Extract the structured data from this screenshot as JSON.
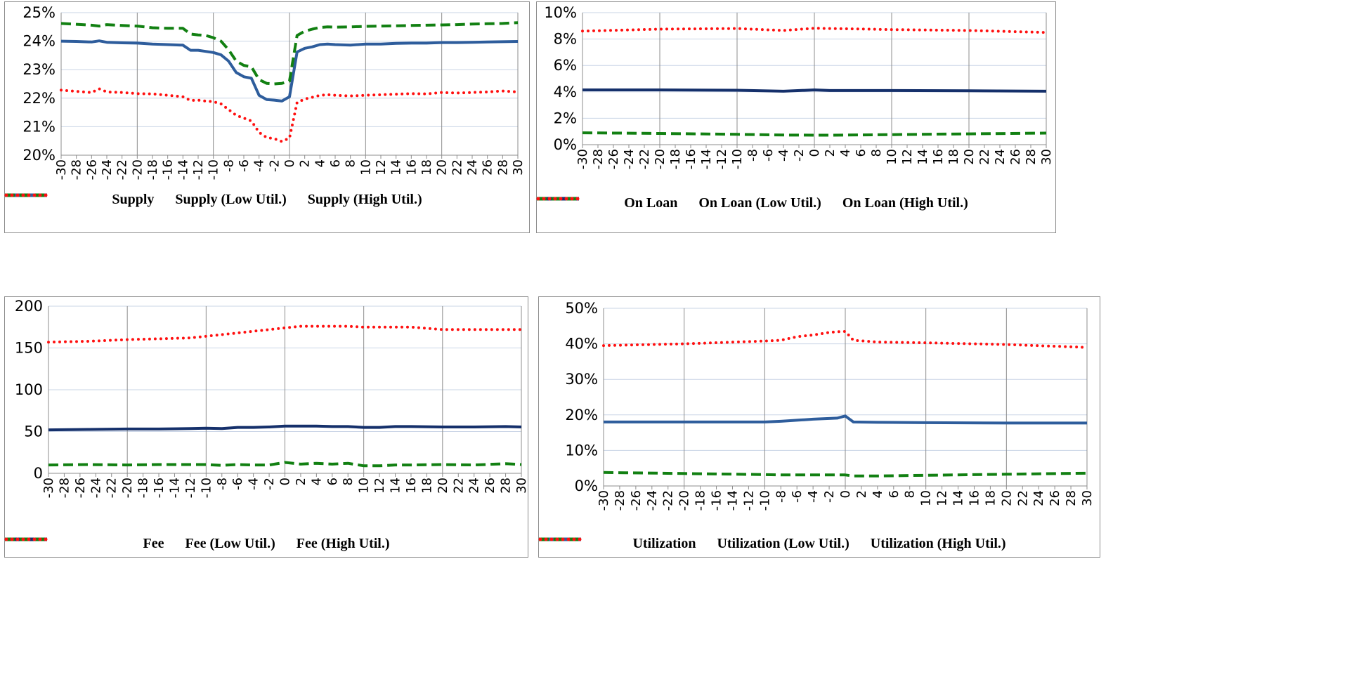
{
  "colors": {
    "solid_a": "#2e5d9c",
    "solid_b": "#15306b",
    "dashed": "#128012",
    "dotted": "#ff1010",
    "grid": "#c9d4e6",
    "vgrid": "#8c8c8c"
  },
  "x_tick_labels": [
    "-30",
    "-28",
    "-26",
    "-24",
    "-22",
    "-20",
    "-18",
    "-16",
    "-14",
    "-12",
    "-10",
    "-8",
    "-6",
    "-4",
    "-2",
    "0",
    "2",
    "4",
    "6",
    "8",
    "10",
    "12",
    "14",
    "16",
    "18",
    "20",
    "22",
    "24",
    "26",
    "28",
    "30"
  ],
  "chart_data": [
    {
      "id": "supply",
      "type": "line",
      "title": "",
      "xlabel": "",
      "ylabel": "",
      "x": [
        -30,
        -28,
        -26,
        -25,
        -24,
        -22,
        -20,
        -18,
        -16,
        -14,
        -13,
        -12,
        -11,
        -10,
        -9,
        -8,
        -7,
        -6,
        -5,
        -4,
        -3,
        -2,
        -1,
        0,
        1,
        2,
        3,
        4,
        5,
        6,
        8,
        10,
        12,
        14,
        16,
        18,
        20,
        22,
        24,
        26,
        28,
        30
      ],
      "ylim": [
        20,
        25
      ],
      "y_ticks": [
        20,
        21,
        22,
        23,
        24,
        25
      ],
      "y_tick_labels": [
        "20%",
        "21%",
        "22%",
        "23%",
        "24%",
        "25%"
      ],
      "series": [
        {
          "name": "Supply",
          "style": "solid_a",
          "values": [
            24.0,
            23.99,
            23.97,
            24.01,
            23.96,
            23.94,
            23.93,
            23.9,
            23.88,
            23.86,
            23.68,
            23.68,
            23.64,
            23.6,
            23.52,
            23.3,
            22.9,
            22.75,
            22.7,
            22.1,
            21.95,
            21.93,
            21.9,
            22.05,
            23.62,
            23.75,
            23.8,
            23.88,
            23.9,
            23.88,
            23.86,
            23.9,
            23.9,
            23.92,
            23.93,
            23.93,
            23.95,
            23.95,
            23.96,
            23.97,
            23.98,
            23.99
          ]
        },
        {
          "name": "Supply (Low Util.)",
          "style": "dashed",
          "values": [
            24.62,
            24.59,
            24.56,
            24.53,
            24.58,
            24.55,
            24.53,
            24.47,
            24.45,
            24.45,
            24.25,
            24.22,
            24.2,
            24.12,
            24.0,
            23.7,
            23.3,
            23.15,
            23.1,
            22.65,
            22.52,
            22.5,
            22.52,
            22.6,
            24.2,
            24.35,
            24.42,
            24.48,
            24.5,
            24.49,
            24.5,
            24.52,
            24.53,
            24.54,
            24.55,
            24.56,
            24.57,
            24.58,
            24.6,
            24.61,
            24.62,
            24.65
          ]
        },
        {
          "name": "Supply (High Util.)",
          "style": "dotted",
          "values": [
            22.28,
            22.24,
            22.2,
            22.33,
            22.22,
            22.2,
            22.16,
            22.15,
            22.1,
            22.05,
            21.92,
            21.93,
            21.9,
            21.88,
            21.8,
            21.6,
            21.4,
            21.3,
            21.2,
            20.8,
            20.62,
            20.58,
            20.48,
            20.6,
            21.85,
            21.97,
            22.03,
            22.1,
            22.12,
            22.1,
            22.08,
            22.1,
            22.12,
            22.14,
            22.16,
            22.15,
            22.2,
            22.18,
            22.2,
            22.22,
            22.25,
            22.22
          ]
        }
      ]
    },
    {
      "id": "on_loan",
      "type": "line",
      "title": "",
      "xlabel": "",
      "ylabel": "",
      "x": [
        -30,
        -20,
        -10,
        -4,
        0,
        2,
        10,
        20,
        30
      ],
      "ylim": [
        0,
        10
      ],
      "y_ticks": [
        0,
        2,
        4,
        6,
        8,
        10
      ],
      "y_tick_labels": [
        "0%",
        "2%",
        "4%",
        "6%",
        "8%",
        "10%"
      ],
      "series": [
        {
          "name": "On Loan",
          "style": "solid_b",
          "values": [
            4.15,
            4.15,
            4.12,
            4.05,
            4.15,
            4.1,
            4.1,
            4.08,
            4.05
          ]
        },
        {
          "name": "On Loan (Low Util.)",
          "style": "dashed",
          "values": [
            0.9,
            0.85,
            0.78,
            0.73,
            0.72,
            0.72,
            0.76,
            0.82,
            0.88
          ]
        },
        {
          "name": "On Loan (High Util.)",
          "style": "dotted",
          "values": [
            8.6,
            8.75,
            8.8,
            8.65,
            8.82,
            8.8,
            8.72,
            8.65,
            8.5
          ]
        }
      ]
    },
    {
      "id": "fee",
      "type": "line",
      "title": "",
      "xlabel": "",
      "ylabel": "",
      "x": [
        -30,
        -25,
        -20,
        -16,
        -12,
        -10,
        -8,
        -6,
        -4,
        -2,
        0,
        2,
        4,
        6,
        8,
        10,
        12,
        14,
        16,
        20,
        24,
        28,
        30
      ],
      "ylim": [
        0,
        200
      ],
      "y_ticks": [
        0,
        50,
        100,
        150,
        200
      ],
      "y_tick_labels": [
        "0",
        "50",
        "100",
        "150",
        "200"
      ],
      "series": [
        {
          "name": "Fee",
          "style": "solid_b",
          "values": [
            52,
            52.5,
            53,
            53,
            53.5,
            54,
            53.5,
            55,
            55,
            55.5,
            56.5,
            56.5,
            56.5,
            56,
            56,
            55,
            55,
            56,
            56,
            55.5,
            55.5,
            56,
            55.5
          ]
        },
        {
          "name": "Fee (Low Util.)",
          "style": "dashed",
          "values": [
            10,
            10.5,
            10,
            10.5,
            10.5,
            10.5,
            9.5,
            10.5,
            10,
            10,
            13,
            11,
            12,
            11,
            12,
            9,
            9,
            10,
            10,
            10.5,
            10,
            11.5,
            10.5
          ]
        },
        {
          "name": "Fee (High Util.)",
          "style": "dotted",
          "values": [
            157,
            158,
            160,
            161,
            162,
            164,
            166,
            168,
            170,
            172,
            174,
            176,
            176,
            176,
            176,
            175,
            175,
            175,
            175,
            172,
            172,
            172,
            172
          ]
        }
      ]
    },
    {
      "id": "utilization",
      "type": "line",
      "title": "",
      "xlabel": "",
      "ylabel": "",
      "x": [
        -30,
        -20,
        -10,
        -8,
        -6,
        -4,
        -2,
        -1,
        0,
        1,
        4,
        10,
        20,
        30
      ],
      "ylim": [
        0,
        50
      ],
      "y_ticks": [
        0,
        10,
        20,
        30,
        40,
        50
      ],
      "y_tick_labels": [
        "0%",
        "10%",
        "20%",
        "30%",
        "40%",
        "50%"
      ],
      "series": [
        {
          "name": "Utilization",
          "style": "solid_a",
          "values": [
            18,
            18,
            18,
            18.2,
            18.5,
            18.8,
            19,
            19.1,
            19.7,
            18,
            17.9,
            17.8,
            17.7,
            17.7
          ]
        },
        {
          "name": "Utilization (Low Util.)",
          "style": "dashed",
          "values": [
            3.8,
            3.5,
            3.2,
            3.1,
            3.1,
            3.1,
            3.1,
            3.1,
            3.1,
            2.8,
            2.8,
            3,
            3.3,
            3.6
          ]
        },
        {
          "name": "Utilization (High Util.)",
          "style": "dotted",
          "values": [
            39.5,
            40,
            40.8,
            41,
            42,
            42.5,
            43.2,
            43.4,
            43.5,
            41,
            40.5,
            40.3,
            39.8,
            39
          ]
        }
      ]
    }
  ]
}
